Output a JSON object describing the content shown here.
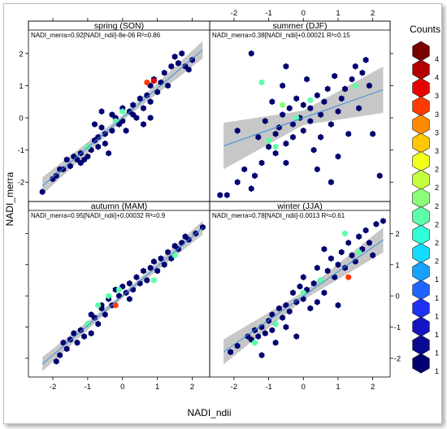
{
  "chart_data": {
    "type": "hexbin-scatter",
    "xlabel": "NADI_ndii",
    "ylabel": "NADI_merra",
    "xlim": [
      -2.7,
      2.5
    ],
    "ylim": [
      -2.6,
      2.4
    ],
    "xticks": [
      -2,
      -1,
      0,
      1,
      2
    ],
    "yticks": [
      -2,
      -1,
      0,
      1,
      2
    ],
    "legend": {
      "title": "Counts",
      "placement": "right",
      "entries": [
        {
          "label": "4",
          "color": "#7a0000"
        },
        {
          "label": "4",
          "color": "#b30000"
        },
        {
          "label": "3",
          "color": "#e80000"
        },
        {
          "label": "3",
          "color": "#ff3a00"
        },
        {
          "label": "3",
          "color": "#ff8a00"
        },
        {
          "label": "3",
          "color": "#ffc800"
        },
        {
          "label": "2",
          "color": "#f2ff1c"
        },
        {
          "label": "2",
          "color": "#c6ff3c"
        },
        {
          "label": "2",
          "color": "#8cff78"
        },
        {
          "label": "2",
          "color": "#5cffa8"
        },
        {
          "label": "2",
          "color": "#30ffd8"
        },
        {
          "label": "2",
          "color": "#12dcff"
        },
        {
          "label": "1",
          "color": "#18a0ff"
        },
        {
          "label": "1",
          "color": "#1e64ff"
        },
        {
          "label": "1",
          "color": "#1e30f0"
        },
        {
          "label": "1",
          "color": "#1414c4"
        },
        {
          "label": "1",
          "color": "#0a0a90"
        },
        {
          "label": "1",
          "color": "#000070"
        }
      ]
    },
    "panels": [
      {
        "title": "spring (SON)",
        "equation": "NADI_merra=0.92[NADI_ndii]-8e-06 R²=0.86",
        "fit": {
          "slope": 0.92,
          "intercept": -8e-06,
          "band": 0.17
        },
        "points": [
          [
            -2.3,
            -2.3
          ],
          [
            -2.0,
            -1.9
          ],
          [
            -1.9,
            -1.8
          ],
          [
            -1.8,
            -1.6
          ],
          [
            -1.6,
            -1.3
          ],
          [
            -1.5,
            -1.5
          ],
          [
            -1.4,
            -1.2
          ],
          [
            -1.3,
            -1.3
          ],
          [
            -1.2,
            -1.4
          ],
          [
            -1.2,
            -1.1
          ],
          [
            -1.1,
            -1.3
          ],
          [
            -1.0,
            -1.2
          ],
          [
            -1.0,
            -0.9
          ],
          [
            -0.9,
            -1.0
          ],
          [
            -0.8,
            -0.7
          ],
          [
            -0.7,
            -0.9
          ],
          [
            -0.7,
            -0.6
          ],
          [
            -0.6,
            -0.3
          ],
          [
            -0.5,
            -0.5
          ],
          [
            -0.5,
            -0.8
          ],
          [
            -0.4,
            -1.1
          ],
          [
            -0.3,
            -0.4
          ],
          [
            -0.3,
            0.1
          ],
          [
            -0.2,
            0.0
          ],
          [
            -0.1,
            -0.2
          ],
          [
            0.0,
            -0.1
          ],
          [
            0.0,
            0.3
          ],
          [
            0.1,
            -0.4
          ],
          [
            0.2,
            0.2
          ],
          [
            0.3,
            0.1
          ],
          [
            0.3,
            0.4
          ],
          [
            0.4,
            0.0
          ],
          [
            0.5,
            0.6
          ],
          [
            0.6,
            0.3
          ],
          [
            0.7,
            0.7
          ],
          [
            0.8,
            0.5
          ],
          [
            0.8,
            1.0
          ],
          [
            0.9,
            1.2
          ],
          [
            1.0,
            0.8
          ],
          [
            1.1,
            1.1
          ],
          [
            1.2,
            1.4
          ],
          [
            1.3,
            1.0
          ],
          [
            1.4,
            1.6
          ],
          [
            1.5,
            1.9
          ],
          [
            1.6,
            1.7
          ],
          [
            1.7,
            2.0
          ],
          [
            1.8,
            1.6
          ],
          [
            1.9,
            1.5
          ],
          [
            2.0,
            1.8
          ],
          [
            -0.8,
            -0.2
          ],
          [
            -0.6,
            0.2
          ],
          [
            0.6,
            -0.2
          ],
          [
            0.8,
            0.0
          ],
          [
            -1.7,
            -1.6
          ]
        ],
        "highlights": [
          [
            -1.0,
            -0.9,
            "#5cffa8"
          ],
          [
            0.0,
            0.2,
            "#5cffa8"
          ],
          [
            -0.2,
            -0.1,
            "#5cffa8"
          ],
          [
            0.7,
            1.1,
            "#ff3a00"
          ],
          [
            0.9,
            1.15,
            "#e80000"
          ]
        ]
      },
      {
        "title": "summer (DJF)",
        "equation": "NADI_merra=0.38[NADI_ndii]+0.00021 R²=0.15",
        "fit": {
          "slope": 0.38,
          "intercept": 0.00021,
          "band": 0.45
        },
        "points": [
          [
            -2.4,
            -2.4
          ],
          [
            -2.2,
            -2.4
          ],
          [
            -1.9,
            -0.4
          ],
          [
            -1.7,
            -1.6
          ],
          [
            -1.5,
            -2.2
          ],
          [
            -1.4,
            -1.8
          ],
          [
            -1.3,
            -0.6
          ],
          [
            -1.2,
            -1.4
          ],
          [
            -1.1,
            -0.1
          ],
          [
            -1.0,
            -0.9
          ],
          [
            -0.9,
            0.5
          ],
          [
            -0.8,
            -0.5
          ],
          [
            -0.8,
            -1.1
          ],
          [
            -0.7,
            -0.3
          ],
          [
            -0.6,
            1.0
          ],
          [
            -0.6,
            0.1
          ],
          [
            -0.5,
            -0.8
          ],
          [
            -0.5,
            -1.4
          ],
          [
            -0.4,
            0.3
          ],
          [
            -0.3,
            -0.2
          ],
          [
            -0.3,
            -0.6
          ],
          [
            -0.2,
            0.6
          ],
          [
            -0.1,
            0.0
          ],
          [
            0.0,
            -0.4
          ],
          [
            0.0,
            0.4
          ],
          [
            0.1,
            1.2
          ],
          [
            0.2,
            -0.1
          ],
          [
            0.2,
            0.3
          ],
          [
            0.3,
            -1.0
          ],
          [
            0.4,
            0.7
          ],
          [
            0.5,
            0.1
          ],
          [
            0.5,
            -0.6
          ],
          [
            0.6,
            0.5
          ],
          [
            0.7,
            0.9
          ],
          [
            0.8,
            -0.2
          ],
          [
            0.9,
            1.3
          ],
          [
            1.0,
            0.2
          ],
          [
            1.0,
            -1.2
          ],
          [
            1.2,
            0.9
          ],
          [
            1.3,
            -0.5
          ],
          [
            1.4,
            1.2
          ],
          [
            1.5,
            1.6
          ],
          [
            1.6,
            0.3
          ],
          [
            1.7,
            1.4
          ],
          [
            1.8,
            1.8
          ],
          [
            1.9,
            1.0
          ],
          [
            2.0,
            -0.5
          ],
          [
            2.2,
            -1.8
          ],
          [
            -1.5,
            2.0
          ],
          [
            -0.5,
            1.6
          ],
          [
            0.8,
            -2.0
          ],
          [
            0.4,
            -1.6
          ],
          [
            1.1,
            0.6
          ],
          [
            -1.9,
            -2.0
          ]
        ],
        "highlights": [
          [
            -1.2,
            1.1,
            "#5cffa8"
          ],
          [
            -1.0,
            -0.7,
            "#5cffa8"
          ],
          [
            -0.8,
            -0.9,
            "#5cffa8"
          ],
          [
            0.2,
            0.55,
            "#5cffa8"
          ],
          [
            1.5,
            1.0,
            "#5cffa8"
          ],
          [
            -0.6,
            0.4,
            "#8cff78"
          ],
          [
            -0.2,
            0.0,
            "#5cffa8"
          ]
        ]
      },
      {
        "title": "autumn (MAM)",
        "equation": "NADI_merra=0.95[NADI_ndii]+0.00032 R²=0.9",
        "fit": {
          "slope": 0.95,
          "intercept": 0.00032,
          "band": 0.14
        },
        "points": [
          [
            -1.9,
            -2.1
          ],
          [
            -1.7,
            -1.5
          ],
          [
            -1.6,
            -1.7
          ],
          [
            -1.5,
            -1.4
          ],
          [
            -1.4,
            -1.2
          ],
          [
            -1.3,
            -1.5
          ],
          [
            -1.2,
            -1.1
          ],
          [
            -1.1,
            -1.3
          ],
          [
            -1.0,
            -0.9
          ],
          [
            -0.9,
            -0.6
          ],
          [
            -0.9,
            -1.2
          ],
          [
            -0.8,
            -0.7
          ],
          [
            -0.7,
            -0.9
          ],
          [
            -0.6,
            -0.4
          ],
          [
            -0.5,
            -0.6
          ],
          [
            -0.4,
            -0.1
          ],
          [
            -0.3,
            -0.3
          ],
          [
            -0.2,
            0.2
          ],
          [
            -0.1,
            0.0
          ],
          [
            0.0,
            0.3
          ],
          [
            0.1,
            0.1
          ],
          [
            0.2,
            0.4
          ],
          [
            0.3,
            0.2
          ],
          [
            0.4,
            0.6
          ],
          [
            0.5,
            0.4
          ],
          [
            0.6,
            0.8
          ],
          [
            0.7,
            0.5
          ],
          [
            0.8,
            0.9
          ],
          [
            0.9,
            1.1
          ],
          [
            1.0,
            0.8
          ],
          [
            1.1,
            1.2
          ],
          [
            1.2,
            1.0
          ],
          [
            1.3,
            1.4
          ],
          [
            1.4,
            1.2
          ],
          [
            1.5,
            1.6
          ],
          [
            1.6,
            1.5
          ],
          [
            1.7,
            1.7
          ],
          [
            1.8,
            1.9
          ],
          [
            1.9,
            1.8
          ],
          [
            2.1,
            2.0
          ],
          [
            2.3,
            2.2
          ],
          [
            -1.8,
            -1.9
          ],
          [
            -0.6,
            -0.3
          ],
          [
            0.2,
            -0.1
          ]
        ],
        "highlights": [
          [
            -0.2,
            -0.3,
            "#ff3a00"
          ],
          [
            -0.1,
            0.2,
            "#5cffa8"
          ],
          [
            -1.0,
            -0.9,
            "#5cffa8"
          ],
          [
            -0.7,
            -0.3,
            "#5cffa8"
          ],
          [
            0.9,
            0.5,
            "#5cffa8"
          ],
          [
            1.5,
            1.3,
            "#5cffa8"
          ],
          [
            -0.4,
            0.0,
            "#5cffa8"
          ]
        ]
      },
      {
        "title": "winter (JJA)",
        "equation": "NADI_merra=0.78[NADI_ndii]-0.0013 R²=0.61",
        "fit": {
          "slope": 0.78,
          "intercept": -0.0013,
          "band": 0.25
        },
        "points": [
          [
            -1.6,
            -1.3
          ],
          [
            -1.5,
            -1.4
          ],
          [
            -1.4,
            -1.1
          ],
          [
            -1.3,
            -1.3
          ],
          [
            -1.2,
            -1.0
          ],
          [
            -1.1,
            -1.2
          ],
          [
            -1.0,
            -0.8
          ],
          [
            -0.9,
            -1.1
          ],
          [
            -0.9,
            -0.6
          ],
          [
            -0.8,
            -0.9
          ],
          [
            -0.7,
            -0.4
          ],
          [
            -0.6,
            -0.7
          ],
          [
            -0.5,
            -0.3
          ],
          [
            -0.5,
            -1.0
          ],
          [
            -0.4,
            -0.5
          ],
          [
            -0.3,
            0.1
          ],
          [
            -0.2,
            -0.2
          ],
          [
            -0.2,
            -1.3
          ],
          [
            -0.1,
            0.3
          ],
          [
            0.0,
            -0.1
          ],
          [
            0.0,
            0.6
          ],
          [
            0.1,
            0.2
          ],
          [
            0.2,
            -0.4
          ],
          [
            0.3,
            0.4
          ],
          [
            0.4,
            0.9
          ],
          [
            0.4,
            -0.2
          ],
          [
            0.5,
            0.5
          ],
          [
            0.6,
            0.1
          ],
          [
            0.7,
            0.8
          ],
          [
            0.8,
            1.2
          ],
          [
            0.9,
            0.6
          ],
          [
            1.0,
            1.0
          ],
          [
            1.0,
            -0.3
          ],
          [
            1.1,
            1.4
          ],
          [
            1.2,
            0.9
          ],
          [
            1.3,
            1.7
          ],
          [
            1.4,
            1.3
          ],
          [
            1.5,
            1.1
          ],
          [
            1.6,
            1.9
          ],
          [
            1.7,
            1.5
          ],
          [
            1.8,
            2.1
          ],
          [
            1.9,
            1.7
          ],
          [
            2.0,
            1.3
          ],
          [
            2.1,
            2.3
          ],
          [
            2.3,
            2.4
          ],
          [
            -1.2,
            -1.9
          ],
          [
            -0.8,
            -1.5
          ],
          [
            0.6,
            1.5
          ],
          [
            -2.1,
            -1.8
          ],
          [
            -1.9,
            -1.6
          ]
        ],
        "highlights": [
          [
            1.2,
            2.0,
            "#5cffa8"
          ],
          [
            1.3,
            0.6,
            "#ff3a00"
          ],
          [
            -0.8,
            -0.9,
            "#5cffa8"
          ],
          [
            0.0,
            0.1,
            "#5cffa8"
          ],
          [
            0.5,
            0.5,
            "#5cffa8"
          ],
          [
            -1.4,
            -1.5,
            "#5cffa8"
          ],
          [
            1.6,
            1.4,
            "#5cffa8"
          ]
        ]
      }
    ]
  }
}
